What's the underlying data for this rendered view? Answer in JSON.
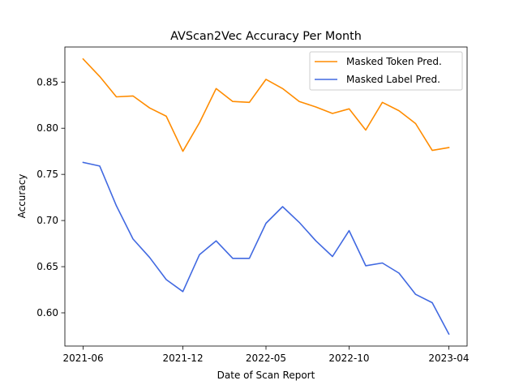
{
  "chart_data": {
    "type": "line",
    "title": "AVScan2Vec Accuracy Per Month",
    "xlabel": "Date of Scan Report",
    "ylabel": "Accuracy",
    "x_dates": [
      "2021-06",
      "2021-07",
      "2021-08",
      "2021-09",
      "2021-10",
      "2021-11",
      "2021-12",
      "2022-01",
      "2022-02",
      "2022-03",
      "2022-04",
      "2022-05",
      "2022-06",
      "2022-07",
      "2022-08",
      "2022-09",
      "2022-10",
      "2022-11",
      "2022-12",
      "2023-01",
      "2023-02",
      "2023-03",
      "2023-04"
    ],
    "xticks": [
      "2021-06",
      "2021-12",
      "2022-05",
      "2022-10",
      "2023-04"
    ],
    "ylim": [
      0.564,
      0.888
    ],
    "yticks": [
      "0.60",
      "0.65",
      "0.70",
      "0.75",
      "0.80",
      "0.85"
    ],
    "legend_position": "top-right",
    "grid": false,
    "series": [
      {
        "name": "Masked Token Pred.",
        "color": "#ff8c00",
        "values": [
          0.875,
          0.856,
          0.834,
          0.835,
          0.822,
          0.813,
          0.775,
          0.806,
          0.843,
          0.829,
          0.828,
          0.853,
          0.843,
          0.829,
          0.823,
          0.816,
          0.821,
          0.798,
          0.828,
          0.819,
          0.805,
          0.776,
          0.779
        ]
      },
      {
        "name": "Masked Label Pred.",
        "color": "#4169e1",
        "values": [
          0.763,
          0.759,
          0.716,
          0.68,
          0.66,
          0.636,
          0.623,
          0.663,
          0.678,
          0.659,
          0.659,
          0.697,
          0.715,
          0.698,
          0.678,
          0.661,
          0.689,
          0.651,
          0.654,
          0.643,
          0.62,
          0.611,
          0.577
        ]
      }
    ]
  }
}
